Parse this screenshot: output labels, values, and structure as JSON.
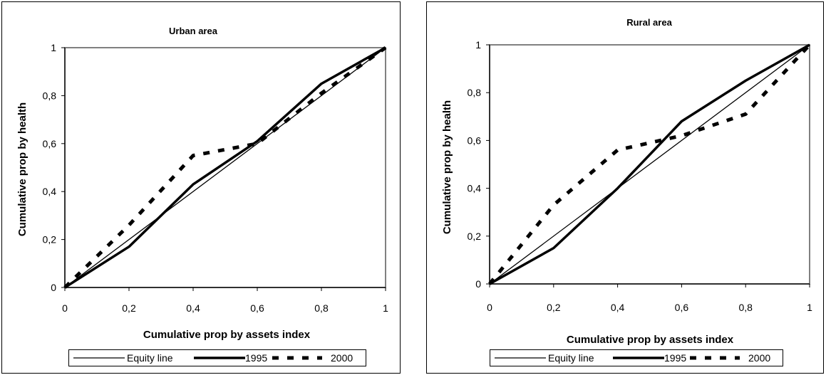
{
  "chart_data": [
    {
      "type": "line",
      "title": "Urban area",
      "xlabel": "Cumulative prop by assets index",
      "ylabel": "Cumulative prop by health",
      "xlim": [
        0,
        1
      ],
      "ylim": [
        0,
        1
      ],
      "x_ticks": [
        "0",
        "0,2",
        "0,4",
        "0,6",
        "0,8",
        "1"
      ],
      "y_ticks": [
        "0",
        "0,2",
        "0,4",
        "0,6",
        "0,8",
        "1"
      ],
      "grid": false,
      "legend_position": "bottom",
      "series": [
        {
          "name": "Equity line",
          "style": "thin-solid",
          "x": [
            0,
            1
          ],
          "y": [
            0,
            1
          ]
        },
        {
          "name": "1995",
          "style": "thick-solid",
          "x": [
            0,
            0.2,
            0.4,
            0.6,
            0.8,
            1
          ],
          "y": [
            0,
            0.17,
            0.43,
            0.61,
            0.85,
            1
          ]
        },
        {
          "name": "2000",
          "style": "thick-dashed",
          "x": [
            0,
            0.2,
            0.4,
            0.6,
            0.8,
            1
          ],
          "y": [
            0,
            0.26,
            0.55,
            0.6,
            0.81,
            1
          ]
        }
      ]
    },
    {
      "type": "line",
      "title": "Rural area",
      "xlabel": "Cumulative prop by assets index",
      "ylabel": "Cumulative prop by health",
      "xlim": [
        0,
        1
      ],
      "ylim": [
        0,
        1
      ],
      "x_ticks": [
        "0",
        "0,2",
        "0,4",
        "0,6",
        "0,8",
        "1"
      ],
      "y_ticks": [
        "0",
        "0,2",
        "0,4",
        "0,6",
        "0,8",
        "1"
      ],
      "grid": false,
      "legend_position": "bottom",
      "series": [
        {
          "name": "Equity line",
          "style": "thin-solid",
          "x": [
            0,
            1
          ],
          "y": [
            0,
            1
          ]
        },
        {
          "name": "1995",
          "style": "thick-solid",
          "x": [
            0,
            0.2,
            0.4,
            0.6,
            0.8,
            1
          ],
          "y": [
            0,
            0.15,
            0.4,
            0.68,
            0.85,
            1
          ]
        },
        {
          "name": "2000",
          "style": "thick-dashed",
          "x": [
            0,
            0.2,
            0.4,
            0.6,
            0.8,
            1
          ],
          "y": [
            0,
            0.33,
            0.56,
            0.62,
            0.71,
            1
          ]
        }
      ]
    }
  ]
}
